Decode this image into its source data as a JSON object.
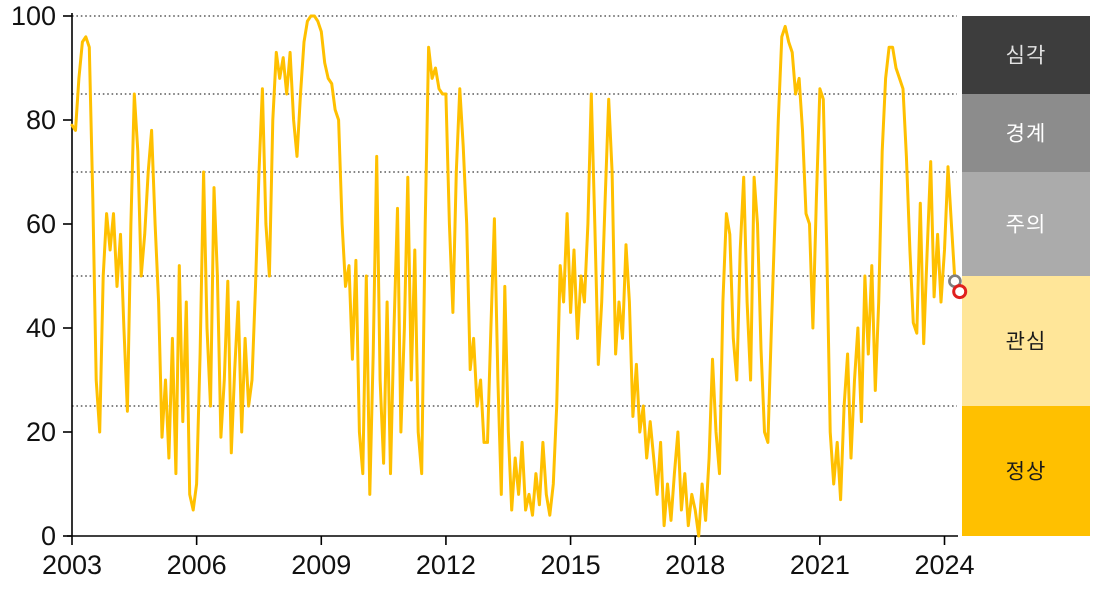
{
  "chart_data": {
    "type": "line",
    "title": "",
    "xlabel": "",
    "ylabel": "",
    "ylim": [
      0,
      100
    ],
    "x_tick_labels": [
      "2003",
      "2006",
      "2009",
      "2012",
      "2015",
      "2018",
      "2021",
      "2024"
    ],
    "y_tick_labels": [
      "0",
      "20",
      "40",
      "60",
      "80",
      "100"
    ],
    "y_tick_values": [
      0,
      20,
      40,
      60,
      80,
      100
    ],
    "gridline_values": [
      25,
      50,
      70,
      85,
      100
    ],
    "gridline_style": "dotted",
    "line_color": "#FFC000",
    "x_start_year": 2003,
    "x_months_per_point": 1,
    "series": [
      {
        "name": "index-monthly",
        "color": "#FFC000",
        "start": "2003-01",
        "values": [
          79,
          78,
          88,
          95,
          96,
          94,
          65,
          30,
          20,
          50,
          62,
          55,
          62,
          48,
          58,
          40,
          24,
          60,
          85,
          74,
          50,
          58,
          70,
          78,
          60,
          45,
          19,
          30,
          15,
          38,
          12,
          52,
          22,
          45,
          8,
          5,
          10,
          35,
          70,
          40,
          25,
          67,
          50,
          19,
          30,
          49,
          16,
          32,
          45,
          20,
          38,
          25,
          30,
          48,
          70,
          86,
          60,
          50,
          80,
          93,
          88,
          92,
          85,
          93,
          80,
          73,
          85,
          95,
          99,
          100,
          100,
          99,
          97,
          91,
          88,
          87,
          82,
          80,
          60,
          48,
          52,
          34,
          53,
          20,
          12,
          50,
          8,
          35,
          73,
          30,
          14,
          45,
          12,
          40,
          63,
          20,
          40,
          69,
          30,
          55,
          20,
          12,
          60,
          94,
          88,
          90,
          86,
          85,
          85,
          60,
          43,
          70,
          86,
          75,
          60,
          32,
          38,
          25,
          30,
          18,
          18,
          40,
          61,
          30,
          8,
          48,
          20,
          5,
          15,
          8,
          18,
          5,
          8,
          4,
          12,
          6,
          18,
          8,
          4,
          10,
          25,
          52,
          45,
          62,
          43,
          55,
          38,
          50,
          45,
          60,
          85,
          60,
          33,
          45,
          65,
          84,
          70,
          35,
          45,
          38,
          56,
          45,
          23,
          33,
          20,
          25,
          15,
          22,
          15,
          8,
          18,
          2,
          10,
          3,
          12,
          20,
          5,
          12,
          2,
          8,
          5,
          0,
          10,
          3,
          15,
          34,
          20,
          12,
          45,
          62,
          58,
          38,
          30,
          55,
          69,
          45,
          30,
          69,
          60,
          36,
          20,
          18,
          40,
          60,
          80,
          96,
          98,
          95,
          93,
          85,
          88,
          78,
          62,
          60,
          40,
          65,
          86,
          84,
          55,
          20,
          10,
          18,
          7,
          25,
          35,
          15,
          30,
          40,
          22,
          50,
          35,
          52,
          28,
          45,
          74,
          88,
          94,
          94,
          90,
          88,
          86,
          73,
          55,
          41,
          39,
          64,
          37,
          55,
          72,
          46,
          58,
          45,
          55,
          71,
          60,
          49
        ]
      }
    ],
    "end_markers": [
      {
        "name": "end-marker-gray",
        "color": "#7F7F7F",
        "value": 49
      },
      {
        "name": "end-marker-red",
        "color": "#E0201E",
        "value": 47
      }
    ],
    "zones": [
      {
        "label": "심각",
        "range": [
          85,
          100
        ],
        "color": "#3D3D3D",
        "text_color": "#E3E3E3"
      },
      {
        "label": "경계",
        "range": [
          70,
          85
        ],
        "color": "#8C8C8C",
        "text_color": "#FFFFFF"
      },
      {
        "label": "주의",
        "range": [
          50,
          70
        ],
        "color": "#ABABAB",
        "text_color": "#FFFFFF"
      },
      {
        "label": "관심",
        "range": [
          25,
          50
        ],
        "color": "#FFE699",
        "text_color": "#1A1A1A"
      },
      {
        "label": "정상",
        "range": [
          0,
          25
        ],
        "color": "#FFC000",
        "text_color": "#1A1A1A"
      }
    ],
    "legend_position": "right-band-column",
    "grid_on": true
  }
}
